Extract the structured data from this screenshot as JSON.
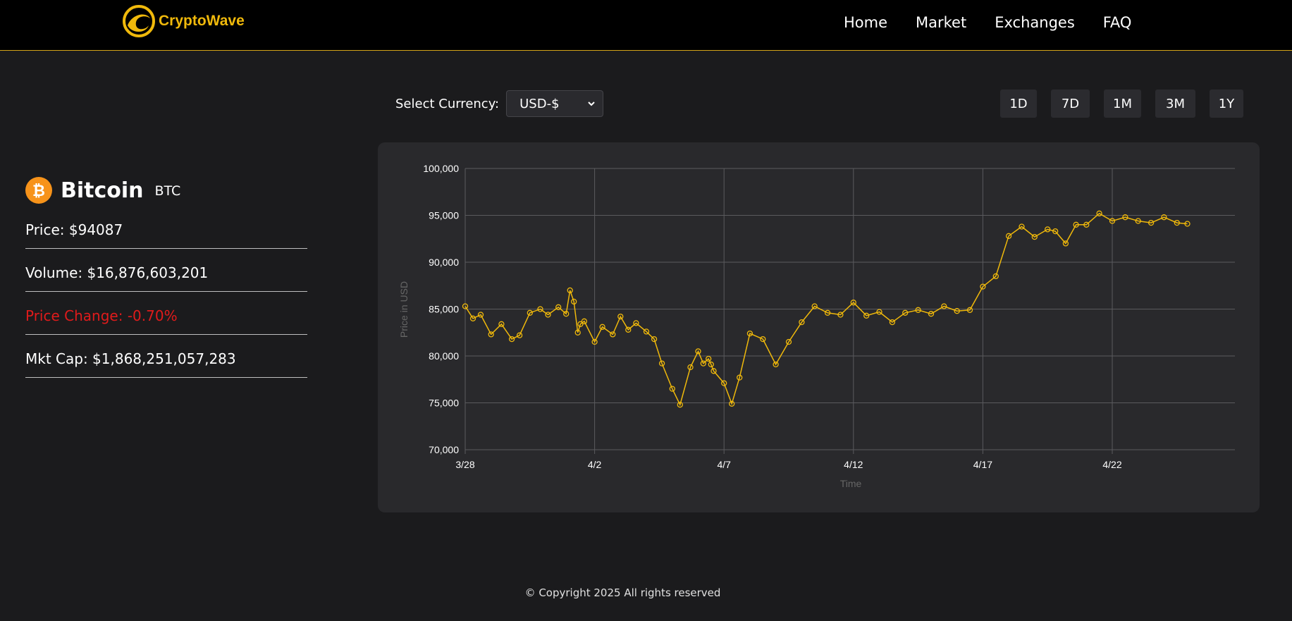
{
  "brand": {
    "name": "CryptoWave",
    "logo_icon": "wave-logo-icon",
    "accent": "#f0b90b"
  },
  "nav": {
    "items": [
      "Home",
      "Market",
      "Exchanges",
      "FAQ"
    ]
  },
  "coin": {
    "icon": "bitcoin-icon",
    "name": "Bitcoin",
    "symbol": "BTC",
    "price": "Price: $94087",
    "volume": "Volume: $16,876,603,201",
    "price_change": "Price Change: -0.70%",
    "market_cap": "Mkt Cap: $1,868,251,057,283",
    "negative_color": "#e01b1b"
  },
  "currency": {
    "label": "Select Currency:",
    "selected": "USD-$"
  },
  "ranges": [
    "1D",
    "7D",
    "1M",
    "3M",
    "1Y"
  ],
  "chart_data": {
    "type": "line",
    "title": "",
    "xlabel": "Time",
    "ylabel": "Price in USD",
    "ylim": [
      70000,
      100000
    ],
    "yticks": [
      "100,000",
      "95,000",
      "90,000",
      "85,000",
      "80,000",
      "75,000",
      "70,000"
    ],
    "xticks": [
      "3/28",
      "4/2",
      "4/7",
      "4/12",
      "4/17",
      "4/22"
    ],
    "grid": true,
    "line_color": "#f0b90b",
    "point_style": "hollow-circle",
    "series": [
      {
        "x_days": [
          0,
          0.3,
          0.6,
          1.0,
          1.4,
          1.8,
          2.1,
          2.5,
          2.9,
          3.2,
          3.6,
          3.9,
          4.05,
          4.2,
          4.35,
          4.45,
          4.6,
          5.0,
          5.3,
          5.7,
          6.0,
          6.3,
          6.6,
          7.0,
          7.3,
          7.6,
          8.0,
          8.3,
          8.7,
          9.0,
          9.2,
          9.4,
          9.5,
          9.6,
          10.0,
          10.3,
          10.6,
          11.0,
          11.5,
          12.0,
          12.5,
          13.0,
          13.5,
          14.0,
          14.5,
          15.0,
          15.5,
          16.0,
          16.5,
          17.0,
          17.5,
          18.0,
          18.5,
          19.0,
          19.5,
          20.0,
          20.5,
          21.0,
          21.5,
          22.0,
          22.5,
          22.8,
          23.2,
          23.6,
          24.0,
          24.5,
          25.0,
          25.5,
          26.0,
          26.5,
          27.0,
          27.5,
          27.9
        ],
        "values": [
          85300,
          84000,
          84400,
          82300,
          83400,
          81800,
          82200,
          84600,
          85000,
          84400,
          85200,
          84500,
          87000,
          85800,
          82500,
          83400,
          83700,
          81500,
          83100,
          82300,
          84200,
          82800,
          83500,
          82600,
          81800,
          79200,
          76500,
          74800,
          78800,
          80500,
          79200,
          79700,
          79100,
          78400,
          77100,
          74900,
          77700,
          82400,
          81800,
          79100,
          81500,
          83600,
          85300,
          84600,
          84400,
          85700,
          84300,
          84700,
          83600,
          84600,
          84900,
          84500,
          85300,
          84800,
          84900,
          87400,
          88500,
          92800,
          93800,
          92700,
          93500,
          93300,
          92000,
          94000,
          94000,
          95200,
          94400,
          94800,
          94400,
          94200,
          94800,
          94200,
          94100
        ]
      }
    ]
  },
  "footer": {
    "text": "© Copyright 2025 All rights reserved"
  }
}
